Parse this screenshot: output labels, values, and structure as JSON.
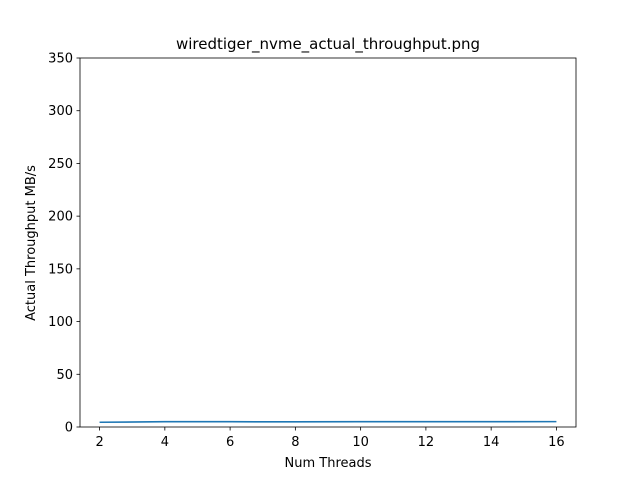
{
  "chart_data": {
    "type": "line",
    "title": "wiredtiger_nvme_actual_throughput.png",
    "xlabel": "Num Threads",
    "ylabel": "Actual Throughput MB/s",
    "xlim": [
      1.4,
      16.6
    ],
    "ylim": [
      0,
      350
    ],
    "xticks": [
      2,
      4,
      6,
      8,
      10,
      12,
      14,
      16
    ],
    "yticks": [
      0,
      50,
      100,
      150,
      200,
      250,
      300,
      350
    ],
    "grid": false,
    "series": [
      {
        "color": "#1f77b4",
        "x": [
          2,
          4,
          6,
          8,
          10,
          12,
          14,
          16
        ],
        "y": [
          4.5,
          5.0,
          5.0,
          4.9,
          5.0,
          5.0,
          5.0,
          5.1
        ]
      }
    ]
  }
}
